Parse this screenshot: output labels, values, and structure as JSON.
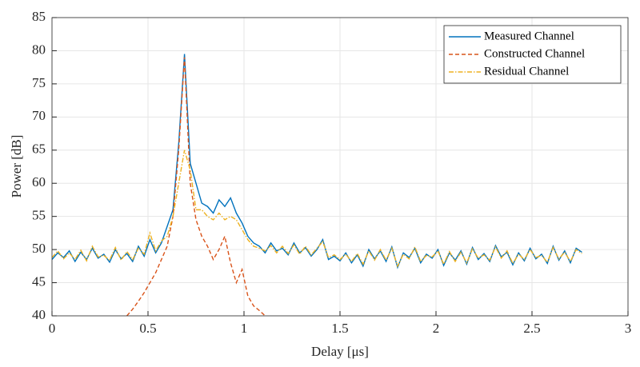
{
  "chart_data": {
    "type": "line",
    "xlabel": "Delay [μs]",
    "ylabel": "Power [dB]",
    "x": [
      0,
      0.03,
      0.06,
      0.09,
      0.12,
      0.15,
      0.18,
      0.21,
      0.24,
      0.27,
      0.3,
      0.33,
      0.36,
      0.39,
      0.42,
      0.45,
      0.48,
      0.51,
      0.54,
      0.57,
      0.6,
      0.63,
      0.66,
      0.69,
      0.72,
      0.75,
      0.78,
      0.81,
      0.84,
      0.87,
      0.9,
      0.93,
      0.96,
      0.99,
      1.02,
      1.05,
      1.08,
      1.11,
      1.14,
      1.17,
      1.2,
      1.23,
      1.26,
      1.29,
      1.32,
      1.35,
      1.38,
      1.41,
      1.44,
      1.47,
      1.5,
      1.53,
      1.56,
      1.59,
      1.62,
      1.65,
      1.68,
      1.71,
      1.74,
      1.77,
      1.8,
      1.83,
      1.86,
      1.89,
      1.92,
      1.95,
      1.98,
      2.01,
      2.04,
      2.07,
      2.1,
      2.13,
      2.16,
      2.19,
      2.22,
      2.25,
      2.28,
      2.31,
      2.34,
      2.37,
      2.4,
      2.43,
      2.46,
      2.49,
      2.52,
      2.55,
      2.58,
      2.61,
      2.64,
      2.67,
      2.7,
      2.73,
      2.76
    ],
    "series": [
      {
        "name": "Measured Channel",
        "color": "#0072bd",
        "style": "solid",
        "values": [
          48.5,
          49.5,
          48.8,
          49.8,
          48.2,
          49.6,
          48.5,
          50.2,
          48.7,
          49.3,
          48.1,
          50.0,
          48.6,
          49.4,
          48.2,
          50.5,
          49.0,
          51.5,
          49.5,
          51.0,
          53.5,
          56,
          66,
          79.5,
          63,
          60,
          57,
          56.5,
          55.5,
          57.5,
          56.5,
          57.8,
          55.5,
          54,
          52,
          51,
          50.5,
          49.5,
          51,
          49.8,
          50.2,
          49.2,
          51,
          49.5,
          50.3,
          49,
          50,
          51.5,
          48.5,
          49,
          48.3,
          49.5,
          48,
          49.2,
          47.5,
          50,
          48.6,
          49.8,
          48.2,
          50.4,
          47.3,
          49.5,
          48.8,
          50.2,
          48,
          49.3,
          48.7,
          50,
          47.6,
          49.5,
          48.4,
          49.8,
          47.8,
          50.3,
          48.5,
          49.4,
          48.2,
          50.6,
          48.9,
          49.6,
          47.7,
          49.5,
          48.3,
          50.2,
          48.6,
          49.3,
          47.9,
          50.5,
          48.4,
          49.8,
          48,
          50.2,
          49.6
        ]
      },
      {
        "name": "Constructed Channel",
        "color": "#d95319",
        "style": "dashed",
        "values": [
          null,
          null,
          null,
          null,
          null,
          null,
          null,
          null,
          null,
          null,
          null,
          null,
          null,
          40,
          41,
          42.2,
          43.5,
          45,
          46.5,
          48.5,
          50.5,
          55,
          65,
          79,
          60,
          54.5,
          52,
          50.5,
          48.5,
          50,
          52,
          48,
          45,
          47,
          43,
          41.5,
          40.8,
          40,
          null,
          null,
          null,
          null,
          null,
          null,
          null,
          null,
          null,
          null,
          null,
          null,
          null,
          null,
          null,
          null,
          null,
          null,
          null,
          null,
          null,
          null,
          null,
          null,
          null,
          null,
          null,
          null,
          null,
          null,
          null,
          null,
          null,
          null,
          null,
          null,
          null,
          null,
          null,
          null,
          null,
          null,
          null,
          null,
          null,
          null,
          null,
          null,
          null,
          null,
          null,
          null,
          null,
          null,
          null
        ]
      },
      {
        "name": "Residual Channel",
        "color": "#edb120",
        "style": "dashdot",
        "values": [
          48.8,
          49.8,
          48.6,
          49.5,
          48.5,
          49.9,
          48.3,
          50.5,
          48.9,
          49.1,
          48.4,
          50.3,
          48.4,
          49.7,
          48.5,
          50.2,
          49.3,
          52.5,
          49.8,
          51.3,
          52,
          55,
          60,
          65,
          62,
          56,
          56,
          55,
          54.5,
          55.5,
          54.5,
          55,
          54.5,
          53,
          51.5,
          50.5,
          50.2,
          49.8,
          50.6,
          49.5,
          50.5,
          49.4,
          50.7,
          49.3,
          50.5,
          49.2,
          50.2,
          51.2,
          48.8,
          49.2,
          48.5,
          49.3,
          48.2,
          49.4,
          47.8,
          49.8,
          48.4,
          50,
          48.4,
          50.2,
          47.5,
          49.3,
          48.6,
          50.4,
          48.2,
          49.1,
          48.9,
          49.8,
          47.8,
          49.7,
          48.2,
          49.6,
          48,
          50.1,
          48.7,
          49.2,
          48.4,
          50.4,
          48.7,
          49.8,
          47.9,
          49.3,
          48.5,
          50,
          48.8,
          49.1,
          48.1,
          50.3,
          48.6,
          49.6,
          48.2,
          50,
          49.4
        ]
      }
    ],
    "xlim": [
      0,
      3
    ],
    "xticks": [
      0,
      0.5,
      1,
      1.5,
      2,
      2.5,
      3
    ],
    "ylim": [
      40,
      85
    ],
    "yticks": [
      40,
      45,
      50,
      55,
      60,
      65,
      70,
      75,
      80,
      85
    ],
    "grid": true,
    "legend": "top-right"
  }
}
